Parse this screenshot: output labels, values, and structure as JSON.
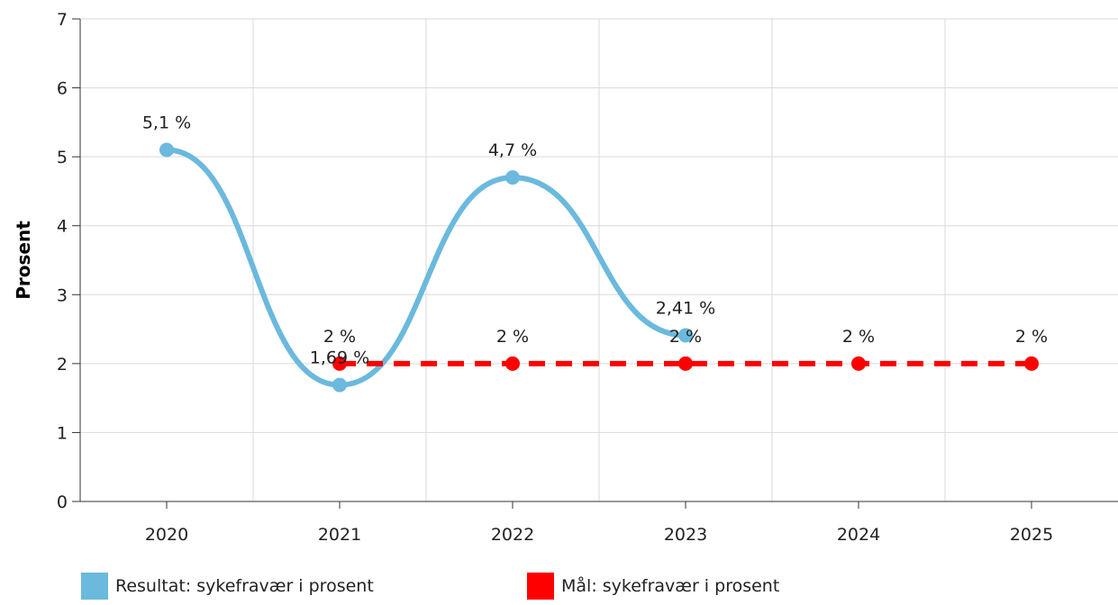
{
  "chart_data": {
    "type": "line",
    "categories": [
      "2020",
      "2021",
      "2022",
      "2023",
      "2024",
      "2025"
    ],
    "ylabel": "Prosent",
    "ylim": [
      0,
      7
    ],
    "yticks": [
      "0",
      "1",
      "2",
      "3",
      "4",
      "5",
      "6",
      "7"
    ],
    "grid": true,
    "legend_position": "bottom",
    "series": [
      {
        "name": "Resultat: sykefravær i prosent",
        "color": "#6bb9dd",
        "style": "smooth",
        "values": [
          5.1,
          1.69,
          4.7,
          2.41,
          null,
          null
        ],
        "labels": [
          "5,1 %",
          "1,69 %",
          "4,7 %",
          "2,41 %",
          "",
          ""
        ]
      },
      {
        "name": "Mål: sykefravær i prosent",
        "color": "#ff0000",
        "style": "dashed",
        "values": [
          null,
          2,
          2,
          2,
          2,
          2
        ],
        "labels": [
          "",
          "2 %",
          "2 %",
          "2 %",
          "2 %",
          "2 %"
        ]
      }
    ]
  }
}
